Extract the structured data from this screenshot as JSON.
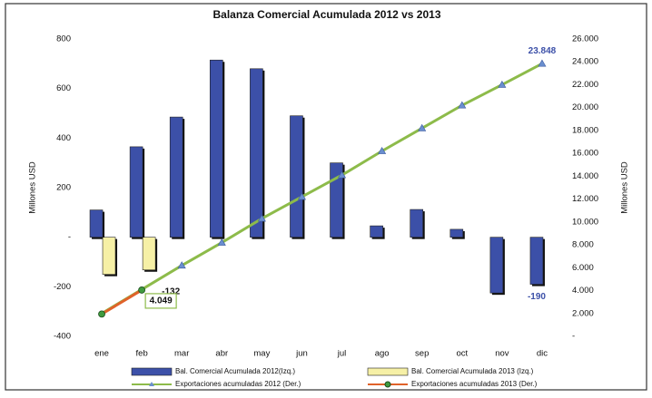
{
  "chart_data": {
    "type": "bar",
    "title": "Balanza Comercial Acumulada 2012 vs 2013",
    "ylabel": "Millones USD",
    "y2label": "Millones USD",
    "categories": [
      "ene",
      "feb",
      "mar",
      "abr",
      "may",
      "jun",
      "jul",
      "ago",
      "sep",
      "oct",
      "nov",
      "dic"
    ],
    "ylim": [
      -400,
      800
    ],
    "yticks": [
      -400,
      -200,
      {
        "value": 0,
        "label": "-"
      },
      200,
      400,
      600,
      800
    ],
    "y2lim": [
      0,
      26000
    ],
    "y2ticks": [
      {
        "value": 0,
        "label": "-"
      },
      {
        "value": 2000,
        "label": "2.000"
      },
      {
        "value": 4000,
        "label": "4.000"
      },
      {
        "value": 6000,
        "label": "6.000"
      },
      {
        "value": 8000,
        "label": "8.000"
      },
      {
        "value": 10000,
        "label": "10.000"
      },
      {
        "value": 12000,
        "label": "12.000"
      },
      {
        "value": 14000,
        "label": "14.000"
      },
      {
        "value": 16000,
        "label": "16.000"
      },
      {
        "value": 18000,
        "label": "18.000"
      },
      {
        "value": 20000,
        "label": "20.000"
      },
      {
        "value": 22000,
        "label": "22.000"
      },
      {
        "value": 24000,
        "label": "24.000"
      },
      {
        "value": 26000,
        "label": "26.000"
      }
    ],
    "legend": "bottom",
    "series": [
      {
        "name": "Bal. Comercial Acumulada 2012(Izq.)",
        "type": "bar",
        "color": "#3c50a8",
        "values": [
          110,
          365,
          485,
          715,
          680,
          490,
          300,
          46,
          112,
          32,
          -225,
          -190
        ],
        "value_labels": [
          null,
          null,
          null,
          null,
          null,
          null,
          null,
          null,
          null,
          null,
          null,
          "-190"
        ]
      },
      {
        "name": "Bal. Comercial Acumulada 2013 (Izq.)",
        "type": "bar",
        "color": "#f6f0a6",
        "values": [
          -150,
          -132,
          null,
          null,
          null,
          null,
          null,
          null,
          null,
          null,
          null,
          null
        ],
        "value_labels": [
          null,
          "-132",
          null,
          null,
          null,
          null,
          null,
          null,
          null,
          null,
          null,
          null
        ]
      },
      {
        "name": "Exportaciones acumuladas 2012 (Der.)",
        "type": "line",
        "axis": "y2",
        "color": "#8dbb4a",
        "values": [
          2000,
          4100,
          6200,
          8200,
          10300,
          12200,
          14100,
          16200,
          18200,
          20200,
          22000,
          23848
        ],
        "value_labels": [
          null,
          null,
          null,
          null,
          null,
          null,
          null,
          null,
          null,
          null,
          null,
          "23.848"
        ]
      },
      {
        "name": "Exportaciones acumuladas 2013 (Der.)",
        "type": "line",
        "axis": "y2",
        "color": "#e0622a",
        "values": [
          1950,
          4049,
          null,
          null,
          null,
          null,
          null,
          null,
          null,
          null,
          null,
          null
        ],
        "value_labels": [
          null,
          "4.049",
          null,
          null,
          null,
          null,
          null,
          null,
          null,
          null,
          null,
          null
        ]
      }
    ]
  }
}
